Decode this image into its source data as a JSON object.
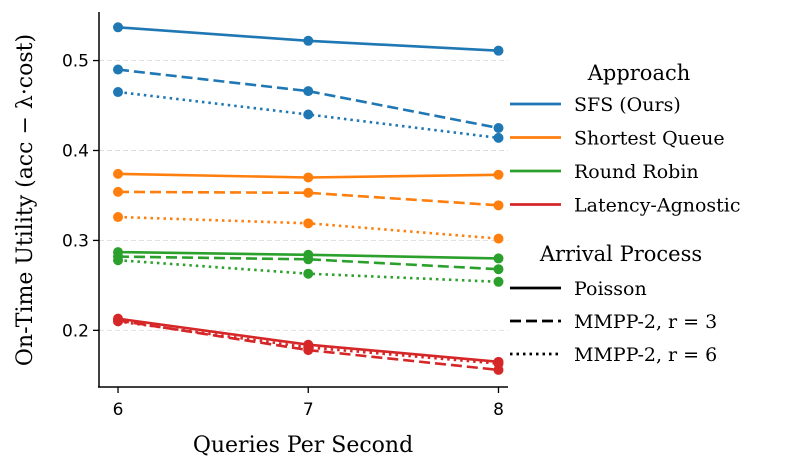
{
  "chart_data": {
    "type": "line",
    "xlabel": "Queries Per Second",
    "ylabel": "On-Time Utility (acc − λ·cost)",
    "x": [
      6,
      7,
      8
    ],
    "x_ticks": [
      "6",
      "7",
      "8"
    ],
    "y_ticks": [
      "0.2",
      "0.3",
      "0.4",
      "0.5"
    ],
    "xlim": [
      5.9,
      8.05
    ],
    "ylim": [
      0.137,
      0.554
    ],
    "grid": "horizontal-dashed",
    "legend_placement": "right",
    "approach_legend": {
      "title": "Approach",
      "entries": [
        {
          "label": "SFS (Ours)",
          "color": "#1f77b4"
        },
        {
          "label": "Shortest Queue",
          "color": "#ff7f0e"
        },
        {
          "label": "Round Robin",
          "color": "#2ca02c"
        },
        {
          "label": "Latency-Agnostic",
          "color": "#d62728"
        }
      ]
    },
    "arrival_legend": {
      "title": "Arrival Process",
      "entries": [
        {
          "label": "Poisson",
          "style": "solid"
        },
        {
          "label": "MMPP-2, r = 3",
          "style": "dashed"
        },
        {
          "label": "MMPP-2, r = 6",
          "style": "dotted"
        }
      ]
    },
    "series": [
      {
        "approach": "SFS (Ours)",
        "arrival": "Poisson",
        "color": "#1f77b4",
        "style": "solid",
        "values": [
          0.537,
          0.522,
          0.511
        ]
      },
      {
        "approach": "SFS (Ours)",
        "arrival": "MMPP-2, r = 3",
        "color": "#1f77b4",
        "style": "dashed",
        "values": [
          0.49,
          0.466,
          0.425
        ]
      },
      {
        "approach": "SFS (Ours)",
        "arrival": "MMPP-2, r = 6",
        "color": "#1f77b4",
        "style": "dotted",
        "values": [
          0.465,
          0.44,
          0.414
        ]
      },
      {
        "approach": "Shortest Queue",
        "arrival": "Poisson",
        "color": "#ff7f0e",
        "style": "solid",
        "values": [
          0.374,
          0.37,
          0.373
        ]
      },
      {
        "approach": "Shortest Queue",
        "arrival": "MMPP-2, r = 3",
        "color": "#ff7f0e",
        "style": "dashed",
        "values": [
          0.354,
          0.353,
          0.339
        ]
      },
      {
        "approach": "Shortest Queue",
        "arrival": "MMPP-2, r = 6",
        "color": "#ff7f0e",
        "style": "dotted",
        "values": [
          0.326,
          0.319,
          0.302
        ]
      },
      {
        "approach": "Round Robin",
        "arrival": "Poisson",
        "color": "#2ca02c",
        "style": "solid",
        "values": [
          0.287,
          0.284,
          0.28
        ]
      },
      {
        "approach": "Round Robin",
        "arrival": "MMPP-2, r = 3",
        "color": "#2ca02c",
        "style": "dashed",
        "values": [
          0.282,
          0.279,
          0.268
        ]
      },
      {
        "approach": "Round Robin",
        "arrival": "MMPP-2, r = 6",
        "color": "#2ca02c",
        "style": "dotted",
        "values": [
          0.278,
          0.263,
          0.254
        ]
      },
      {
        "approach": "Latency-Agnostic",
        "arrival": "Poisson",
        "color": "#d62728",
        "style": "solid",
        "values": [
          0.213,
          0.184,
          0.165
        ]
      },
      {
        "approach": "Latency-Agnostic",
        "arrival": "MMPP-2, r = 3",
        "color": "#d62728",
        "style": "dashed",
        "values": [
          0.211,
          0.178,
          0.156
        ]
      },
      {
        "approach": "Latency-Agnostic",
        "arrival": "MMPP-2, r = 6",
        "color": "#d62728",
        "style": "dotted",
        "values": [
          0.21,
          0.181,
          0.163
        ]
      }
    ]
  }
}
